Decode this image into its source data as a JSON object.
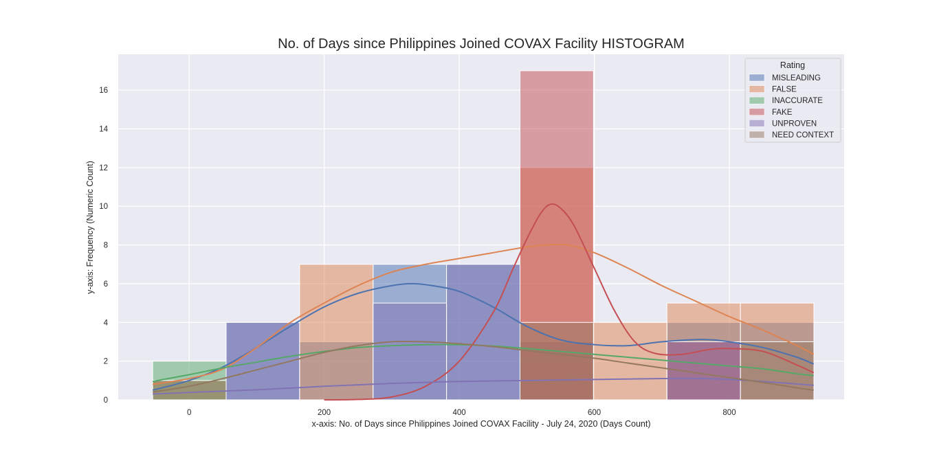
{
  "chart_data": {
    "type": "histogram",
    "title": "No. of Days since Philippines Joined COVAX Facility HISTOGRAM",
    "xlabel": "x-axis: No. of Days since Philippines Joined COVAX Facility - July 24, 2020 (Days Count)",
    "ylabel": "y-axis: Frequency (Numeric Count)",
    "xlim": [
      -105,
      970
    ],
    "ylim": [
      0,
      17.85
    ],
    "xticks": [
      0,
      200,
      400,
      600,
      800
    ],
    "yticks": [
      0,
      2,
      4,
      6,
      8,
      10,
      12,
      14,
      16
    ],
    "grid": true,
    "legend": {
      "title": "Rating",
      "placement": "top-right"
    },
    "bin_edges": [
      -54,
      54.8,
      163.6,
      272.4,
      381.2,
      490,
      598.8,
      707.6,
      816.4,
      925.2
    ],
    "series": [
      {
        "name": "MISLEADING",
        "color": "#4c72b0",
        "counts": [
          0,
          4,
          3,
          7,
          7,
          3,
          0,
          4,
          4
        ],
        "kde": [
          [
            -54,
            0.5
          ],
          [
            0,
            1.0
          ],
          [
            50,
            1.7
          ],
          [
            100,
            2.7
          ],
          [
            150,
            3.8
          ],
          [
            200,
            4.8
          ],
          [
            250,
            5.5
          ],
          [
            300,
            5.9
          ],
          [
            330,
            6.0
          ],
          [
            360,
            5.9
          ],
          [
            400,
            5.6
          ],
          [
            450,
            4.8
          ],
          [
            500,
            3.8
          ],
          [
            550,
            3.1
          ],
          [
            600,
            2.85
          ],
          [
            650,
            2.8
          ],
          [
            700,
            3.0
          ],
          [
            760,
            3.12
          ],
          [
            800,
            3.0
          ],
          [
            850,
            2.7
          ],
          [
            900,
            2.2
          ],
          [
            925,
            1.85
          ]
        ]
      },
      {
        "name": "FALSE",
        "color": "#dd8452",
        "counts": [
          1,
          0,
          7,
          0,
          0,
          12,
          4,
          5,
          5
        ],
        "kde": [
          [
            -54,
            0.8
          ],
          [
            0,
            1.1
          ],
          [
            50,
            1.6
          ],
          [
            100,
            2.7
          ],
          [
            150,
            4.0
          ],
          [
            200,
            5.0
          ],
          [
            250,
            5.9
          ],
          [
            300,
            6.6
          ],
          [
            350,
            7.0
          ],
          [
            400,
            7.3
          ],
          [
            450,
            7.6
          ],
          [
            500,
            7.9
          ],
          [
            530,
            8.0
          ],
          [
            560,
            8.0
          ],
          [
            600,
            7.6
          ],
          [
            650,
            6.8
          ],
          [
            700,
            5.9
          ],
          [
            750,
            5.1
          ],
          [
            800,
            4.3
          ],
          [
            850,
            3.6
          ],
          [
            900,
            2.8
          ],
          [
            925,
            2.35
          ]
        ]
      },
      {
        "name": "INACCURATE",
        "color": "#55a868",
        "counts": [
          2,
          0,
          0,
          0,
          0,
          0,
          0,
          0,
          0
        ],
        "kde": [
          [
            -54,
            0.95
          ],
          [
            0,
            1.3
          ],
          [
            50,
            1.65
          ],
          [
            100,
            1.95
          ],
          [
            150,
            2.25
          ],
          [
            200,
            2.5
          ],
          [
            250,
            2.7
          ],
          [
            300,
            2.8
          ],
          [
            350,
            2.85
          ],
          [
            400,
            2.85
          ],
          [
            450,
            2.78
          ],
          [
            500,
            2.65
          ],
          [
            550,
            2.5
          ],
          [
            600,
            2.35
          ],
          [
            650,
            2.2
          ],
          [
            700,
            2.05
          ],
          [
            750,
            1.9
          ],
          [
            800,
            1.75
          ],
          [
            850,
            1.6
          ],
          [
            900,
            1.35
          ],
          [
            925,
            1.25
          ]
        ]
      },
      {
        "name": "FAKE",
        "color": "#c44e52",
        "counts": [
          0,
          0,
          0,
          0,
          0,
          17,
          0,
          3,
          0
        ],
        "kde": [
          [
            200,
            0.0
          ],
          [
            250,
            0.02
          ],
          [
            300,
            0.15
          ],
          [
            350,
            0.7
          ],
          [
            400,
            2.0
          ],
          [
            450,
            4.5
          ],
          [
            480,
            6.8
          ],
          [
            500,
            8.3
          ],
          [
            520,
            9.6
          ],
          [
            535,
            10.1
          ],
          [
            550,
            9.9
          ],
          [
            570,
            9.0
          ],
          [
            600,
            6.8
          ],
          [
            630,
            4.6
          ],
          [
            660,
            3.0
          ],
          [
            690,
            2.4
          ],
          [
            730,
            2.35
          ],
          [
            770,
            2.6
          ],
          [
            800,
            2.65
          ],
          [
            850,
            2.5
          ],
          [
            900,
            1.8
          ],
          [
            925,
            1.4
          ]
        ]
      },
      {
        "name": "UNPROVEN",
        "color": "#8172b3",
        "counts": [
          0,
          4,
          0,
          5,
          7,
          0,
          0,
          3,
          0
        ],
        "kde": [
          [
            -54,
            0.3
          ],
          [
            0,
            0.38
          ],
          [
            100,
            0.52
          ],
          [
            200,
            0.7
          ],
          [
            300,
            0.85
          ],
          [
            400,
            0.95
          ],
          [
            500,
            1.0
          ],
          [
            600,
            1.05
          ],
          [
            700,
            1.1
          ],
          [
            760,
            1.1
          ],
          [
            800,
            1.05
          ],
          [
            850,
            0.95
          ],
          [
            925,
            0.75
          ]
        ]
      },
      {
        "name": "NEED CONTEXT",
        "color": "#937860",
        "counts": [
          1,
          0,
          0,
          0,
          0,
          4,
          0,
          0,
          3
        ],
        "kde": [
          [
            -54,
            0.4
          ],
          [
            0,
            0.7
          ],
          [
            50,
            1.1
          ],
          [
            100,
            1.55
          ],
          [
            150,
            2.0
          ],
          [
            200,
            2.45
          ],
          [
            250,
            2.8
          ],
          [
            300,
            3.0
          ],
          [
            350,
            3.0
          ],
          [
            400,
            2.9
          ],
          [
            450,
            2.75
          ],
          [
            500,
            2.55
          ],
          [
            550,
            2.35
          ],
          [
            600,
            2.15
          ],
          [
            650,
            1.9
          ],
          [
            700,
            1.65
          ],
          [
            750,
            1.4
          ],
          [
            800,
            1.15
          ],
          [
            850,
            0.9
          ],
          [
            900,
            0.62
          ],
          [
            925,
            0.5
          ]
        ]
      }
    ]
  }
}
